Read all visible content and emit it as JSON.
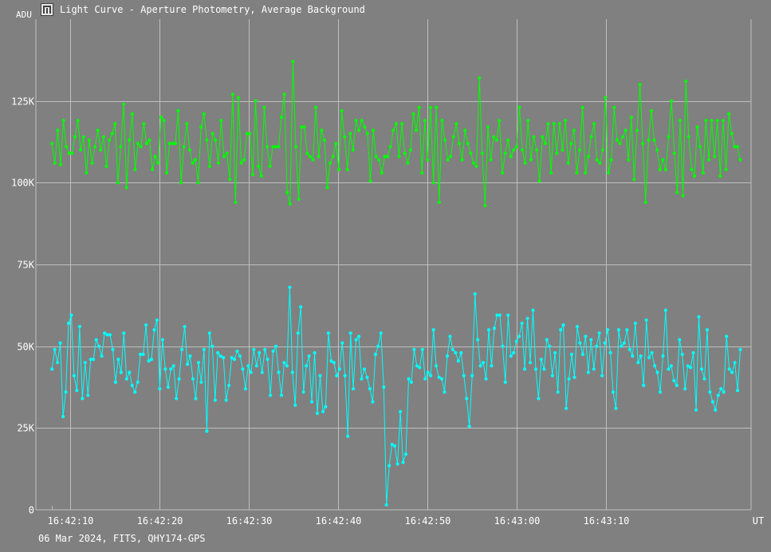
{
  "window": {
    "title": "Light Curve - Aperture Photometry, Average Background",
    "icon": "light-curve-app-icon"
  },
  "footer": {
    "info": "06 Mar 2024, FITS, QHY174-GPS"
  },
  "colors": {
    "background": "#808080",
    "grid": "#bfbfbf",
    "green_series": "#00ff00",
    "cyan_series": "#00ffff",
    "text": "#ffffff"
  },
  "chart_data": {
    "type": "line",
    "title": "Light Curve - Aperture Photometry, Average Background",
    "xlabel": "UT",
    "ylabel": "ADU",
    "x_unit": "seconds after 16:42:08 UT",
    "xlim": [
      -1.8,
      78.2
    ],
    "ylim": [
      0,
      150000
    ],
    "grid": true,
    "legend": "none",
    "x_ticks": [
      "16:42:10",
      "16:42:20",
      "16:42:30",
      "16:42:40",
      "16:42:50",
      "16:43:00",
      "16:43:10"
    ],
    "y_ticks": [
      "0",
      "25K",
      "50K",
      "75K",
      "100K",
      "125K"
    ],
    "series": [
      {
        "color": "#00ff00",
        "values": [
          112000,
          106000,
          116000,
          105500,
          119000,
          111000,
          109000,
          109000,
          114000,
          119000,
          110000,
          114000,
          103000,
          113000,
          106000,
          111000,
          116000,
          110000,
          114000,
          105000,
          113000,
          115000,
          118000,
          100000,
          111000,
          124000,
          98500,
          113000,
          121000,
          104000,
          112000,
          111000,
          118000,
          112000,
          113000,
          104000,
          108000,
          106000,
          120000,
          119000,
          103000,
          112000,
          112000,
          112000,
          122000,
          100000,
          111000,
          118000,
          110000,
          106000,
          107000,
          100000,
          117000,
          121000,
          113000,
          105000,
          115000,
          113000,
          106000,
          119000,
          108000,
          109000,
          101000,
          127000,
          94000,
          126000,
          106000,
          107000,
          115000,
          115000,
          102500,
          125000,
          105000,
          102000,
          123000,
          111000,
          105000,
          111000,
          111000,
          111000,
          120000,
          127000,
          97000,
          93500,
          137000,
          111000,
          95000,
          117000,
          117000,
          109000,
          108000,
          107000,
          123000,
          108000,
          116000,
          113000,
          98500,
          106000,
          108000,
          112000,
          104000,
          122000,
          114000,
          104000,
          115000,
          110000,
          119000,
          116000,
          119000,
          117000,
          115000,
          100500,
          116000,
          108000,
          107000,
          103000,
          108000,
          108000,
          111000,
          116000,
          118000,
          108000,
          118000,
          109000,
          106000,
          110000,
          121000,
          116000,
          123000,
          103000,
          119000,
          107000,
          123000,
          100000,
          123000,
          94000,
          119000,
          113000,
          107000,
          108000,
          114000,
          118000,
          112000,
          107000,
          116000,
          112000,
          109000,
          106000,
          105000,
          132000,
          109000,
          93000,
          117000,
          107000,
          114000,
          113000,
          119000,
          103000,
          109000,
          113000,
          108000,
          110000,
          111000,
          123000,
          110000,
          106000,
          119000,
          107000,
          114000,
          110000,
          100500,
          114000,
          112000,
          118000,
          103000,
          118000,
          109000,
          118000,
          110000,
          119000,
          106000,
          112000,
          116000,
          103000,
          110000,
          123000,
          103000,
          108000,
          114000,
          118000,
          107000,
          106000,
          110000,
          126000,
          103000,
          107000,
          123000,
          113000,
          112000,
          114000,
          116000,
          107000,
          120000,
          101000,
          116000,
          130000,
          112000,
          94000,
          113000,
          122000,
          113000,
          110000,
          104000,
          107000,
          104000,
          114000,
          125000,
          109000,
          97000,
          119000,
          96000,
          131000,
          114000,
          104000,
          102000,
          117000,
          111000,
          103000,
          119000,
          107000,
          119000,
          108000,
          119000,
          102000,
          119000,
          104000,
          121000,
          115000,
          111000,
          111000,
          107000
        ],
        "t_start": 0,
        "t_end": 77
      },
      {
        "color": "#00ffff",
        "values": [
          43000,
          49000,
          45000,
          51000,
          28500,
          36000,
          57000,
          59500,
          41000,
          36500,
          56000,
          34000,
          45000,
          35000,
          46000,
          46000,
          52000,
          50000,
          47000,
          54000,
          53500,
          53500,
          49000,
          39000,
          46000,
          42000,
          54000,
          40000,
          42000,
          38000,
          36000,
          39000,
          47500,
          47500,
          56500,
          45500,
          46000,
          55000,
          58000,
          37000,
          52000,
          43000,
          37500,
          43000,
          44000,
          34000,
          40000,
          49000,
          56000,
          44500,
          47000,
          40000,
          34000,
          45000,
          39000,
          49000,
          24000,
          54000,
          50000,
          33500,
          48000,
          47000,
          46500,
          33500,
          38000,
          46500,
          46000,
          48500,
          47000,
          43000,
          37000,
          44000,
          42000,
          49000,
          44000,
          48000,
          42000,
          49000,
          46000,
          35000,
          48500,
          50000,
          42000,
          35000,
          45000,
          44000,
          68000,
          42000,
          32000,
          54000,
          62000,
          36000,
          44000,
          47000,
          33000,
          48000,
          29500,
          41000,
          30000,
          31500,
          54000,
          45500,
          45000,
          41000,
          43000,
          51000,
          41000,
          22500,
          54000,
          37000,
          52000,
          53000,
          40000,
          43000,
          40500,
          37000,
          33000,
          47500,
          50000,
          54000,
          37500,
          1500,
          13500,
          20000,
          19500,
          14000,
          30000,
          14500,
          17000,
          40000,
          39000,
          49000,
          44000,
          43500,
          49000,
          40000,
          42000,
          41000,
          55000,
          44000,
          40500,
          40000,
          36000,
          47000,
          53000,
          49000,
          48000,
          45500,
          48000,
          41000,
          34000,
          25500,
          41000,
          66000,
          52000,
          44000,
          45000,
          40000,
          55000,
          44000,
          55500,
          59500,
          59500,
          50000,
          39000,
          59500,
          47000,
          48000,
          51500,
          53000,
          57000,
          43000,
          58500,
          45000,
          61000,
          43000,
          34000,
          46000,
          43000,
          52000,
          50000,
          41000,
          48000,
          36000,
          55000,
          56500,
          31000,
          40000,
          47500,
          40500,
          56000,
          51000,
          47500,
          53000,
          42000,
          52000,
          43000,
          50000,
          54000,
          41000,
          51000,
          55000,
          48000,
          36000,
          31000,
          55000,
          50000,
          51000,
          55000,
          49000,
          47000,
          57000,
          45000,
          47000,
          38000,
          58000,
          46500,
          48000,
          44000,
          42000,
          36000,
          47000,
          61000,
          43000,
          44000,
          39500,
          38000,
          52000,
          47500,
          37000,
          44000,
          43500,
          48000,
          30500,
          59000,
          43000,
          40000,
          55000,
          36000,
          33000,
          30500,
          35000,
          37000,
          36000,
          53000,
          43000,
          42000,
          45000,
          36500,
          49000
        ],
        "t_start": 0,
        "t_end": 77
      }
    ]
  }
}
